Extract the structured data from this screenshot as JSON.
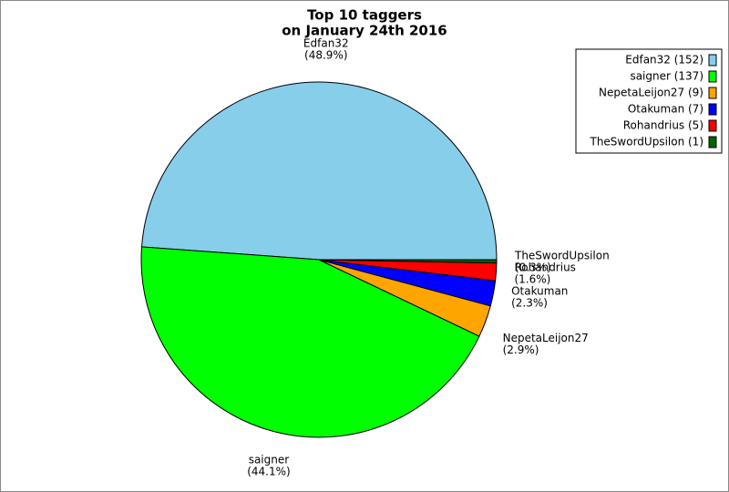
{
  "chart_data": {
    "type": "pie",
    "title": [
      "Top 10 taggers",
      "on January 24th 2016"
    ],
    "categories": [
      "Edfan32",
      "saigner",
      "NepetaLeijon27",
      "Otakuman",
      "Rohandrius",
      "TheSwordUpsilon"
    ],
    "values": [
      48.9,
      44.1,
      2.9,
      2.3,
      1.6,
      0.3
    ],
    "value_labels": [
      "(48.9%)",
      "(44.1%)",
      "(2.9%)",
      "(2.3%)",
      "(1.6%)",
      "(0.3%)"
    ],
    "colors": [
      "#87ceeb",
      "#00ff00",
      "#ffa500",
      "#0000ff",
      "#ff0000",
      "#006400"
    ],
    "legend": [
      "Edfan32 (152)",
      "saigner (137)",
      "NepetaLeijon27 (9)",
      "Otakuman (7)",
      "Rohandrius (5)",
      "TheSwordUpsilon (1)"
    ],
    "legend_position": "upper right"
  }
}
